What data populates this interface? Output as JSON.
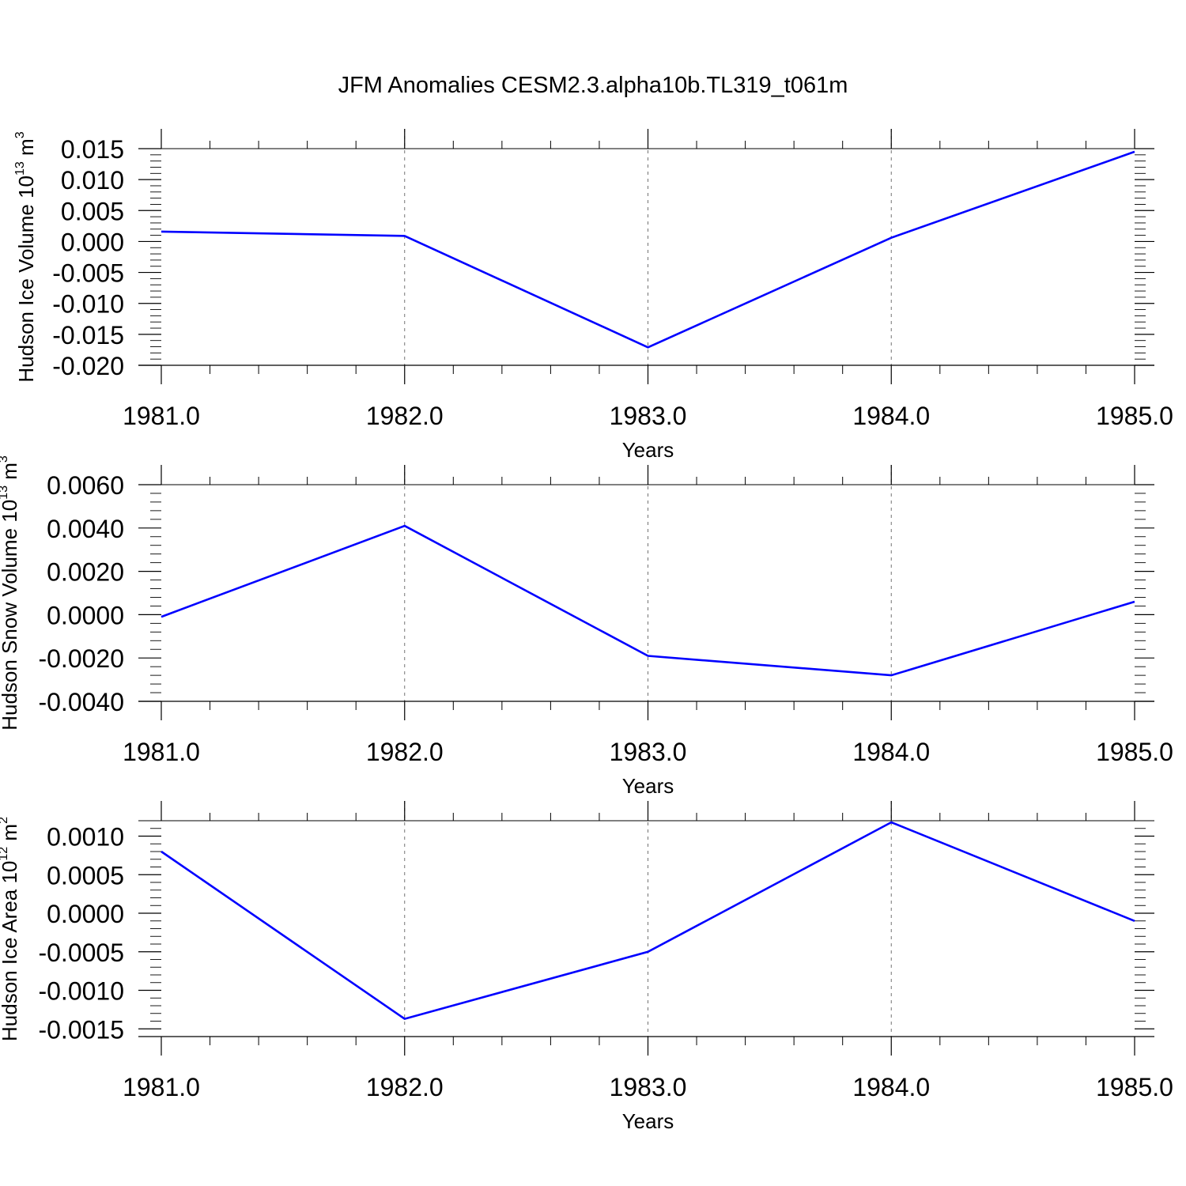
{
  "chart_data": [
    {
      "type": "line",
      "title": "JFM Anomalies CESM2.3.alpha10b.TL319_t061m",
      "xlabel": "Years",
      "ylabel": {
        "text": "Hudson Ice Volume 10",
        "exp": "13",
        "unit": " m",
        "unit_exp": "3"
      },
      "xlim": [
        1981.0,
        1985.0
      ],
      "ylim": [
        -0.02,
        0.015
      ],
      "xticks": [
        1981.0,
        1982.0,
        1983.0,
        1984.0,
        1985.0
      ],
      "xtick_labels": [
        "1981.0",
        "1982.0",
        "1983.0",
        "1984.0",
        "1985.0"
      ],
      "yticks": [
        0.015,
        0.01,
        0.005,
        0.0,
        -0.005,
        -0.01,
        -0.015,
        -0.02
      ],
      "ytick_labels": [
        "0.015",
        "0.010",
        "0.005",
        "0.000",
        "-0.005",
        "-0.010",
        "-0.015",
        "-0.020"
      ],
      "grid": "vertical dashed at major x ticks",
      "series": [
        {
          "x": [
            1981,
            1982,
            1983,
            1984,
            1985
          ],
          "values": [
            0.0016,
            0.0009,
            -0.0171,
            0.0006,
            0.0145
          ],
          "color": "#0000ff"
        }
      ]
    },
    {
      "type": "line",
      "title": "",
      "xlabel": "Years",
      "ylabel": {
        "text": "Hudson Snow Volume 10",
        "exp": "13",
        "unit": " m",
        "unit_exp": "3"
      },
      "xlim": [
        1981.0,
        1985.0
      ],
      "ylim": [
        -0.004,
        0.006
      ],
      "xticks": [
        1981.0,
        1982.0,
        1983.0,
        1984.0,
        1985.0
      ],
      "xtick_labels": [
        "1981.0",
        "1982.0",
        "1983.0",
        "1984.0",
        "1985.0"
      ],
      "yticks": [
        0.006,
        0.004,
        0.002,
        0.0,
        -0.002,
        -0.004
      ],
      "ytick_labels": [
        "0.0060",
        "0.0040",
        "0.0020",
        "0.0000",
        "-0.0020",
        "-0.0040"
      ],
      "grid": "vertical dashed at major x ticks",
      "series": [
        {
          "x": [
            1981,
            1982,
            1983,
            1984,
            1985
          ],
          "values": [
            -0.0001,
            0.0041,
            -0.0019,
            -0.0028,
            0.0006
          ],
          "color": "#0000ff"
        }
      ]
    },
    {
      "type": "line",
      "title": "",
      "xlabel": "Years",
      "ylabel": {
        "text": "Hudson Ice Area 10",
        "exp": "12",
        "unit": " m",
        "unit_exp": "2"
      },
      "xlim": [
        1981.0,
        1985.0
      ],
      "ylim": [
        -0.0016,
        0.0012
      ],
      "xticks": [
        1981.0,
        1982.0,
        1983.0,
        1984.0,
        1985.0
      ],
      "xtick_labels": [
        "1981.0",
        "1982.0",
        "1983.0",
        "1984.0",
        "1985.0"
      ],
      "yticks": [
        0.001,
        0.0005,
        0.0,
        -0.0005,
        -0.001,
        -0.0015
      ],
      "ytick_labels": [
        "0.0010",
        "0.0005",
        "0.0000",
        "-0.0005",
        "-0.0010",
        "-0.0015"
      ],
      "grid": "vertical dashed at major x ticks",
      "series": [
        {
          "x": [
            1981,
            1982,
            1983,
            1984,
            1985
          ],
          "values": [
            0.0008,
            -0.00137,
            -0.0005,
            0.00118,
            -0.0001
          ],
          "color": "#0000ff"
        }
      ]
    }
  ]
}
